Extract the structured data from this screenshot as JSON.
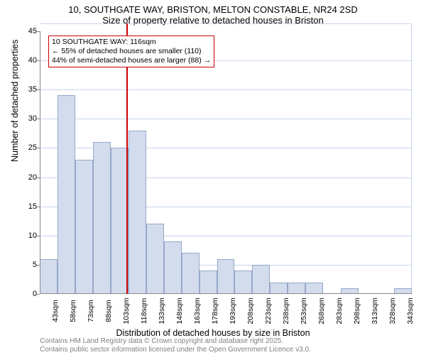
{
  "chart": {
    "type": "histogram",
    "title_main": "10, SOUTHGATE WAY, BRISTON, MELTON CONSTABLE, NR24 2SD",
    "title_sub": "Size of property relative to detached houses in Briston",
    "title_fontsize": 13,
    "x_label": "Distribution of detached houses by size in Briston",
    "y_label": "Number of detached properties",
    "label_fontsize": 12.5,
    "background_color": "#ffffff",
    "grid_color": "#c7d5ea",
    "bar_fill": "#d3dced",
    "bar_border": "#95a8c9",
    "marker_color": "#cc0000",
    "annotation_border": "#cc0000",
    "axis_color": "#888888",
    "footer_color": "#808080",
    "ylim": [
      0,
      45
    ],
    "ytick_step": 5,
    "yticks": [
      0,
      5,
      10,
      15,
      20,
      25,
      30,
      35,
      40,
      45
    ],
    "x_categories": [
      "43sqm",
      "58sqm",
      "73sqm",
      "88sqm",
      "103sqm",
      "118sqm",
      "133sqm",
      "148sqm",
      "163sqm",
      "178sqm",
      "193sqm",
      "208sqm",
      "223sqm",
      "238sqm",
      "253sqm",
      "268sqm",
      "283sqm",
      "298sqm",
      "313sqm",
      "328sqm",
      "343sqm"
    ],
    "x_tick_fontsize": 10.5,
    "y_tick_fontsize": 11,
    "values": [
      6,
      34,
      23,
      26,
      25,
      28,
      12,
      9,
      7,
      4,
      6,
      4,
      5,
      2,
      2,
      2,
      0,
      1,
      0,
      0,
      1
    ],
    "bar_width": 1.0,
    "marker_x_index": 5,
    "annotation": {
      "line1": "10 SOUTHGATE WAY: 116sqm",
      "line2": "← 55% of detached houses are smaller (110)",
      "line3": "44% of semi-detached houses are larger (88) →",
      "fontsize": 10.5
    },
    "footer_line1": "Contains HM Land Registry data © Crown copyright and database right 2025.",
    "footer_line2": "Contains public sector information licensed under the Open Government Licence v3.0.",
    "footer_fontsize": 10
  }
}
